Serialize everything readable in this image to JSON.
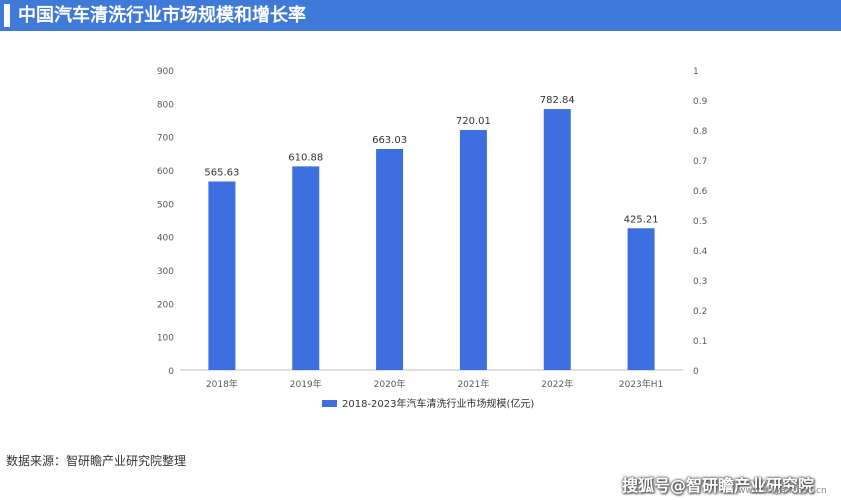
{
  "title": "中国汽车清洗行业市场规模和增长率",
  "source": "数据来源：智研瞻产业研究院整理",
  "watermark": "搜狐号@智研瞻产业研究院",
  "watermark_url": "www.zhiyanzhan.cn",
  "colors": {
    "title_bar": "#3f7ad8",
    "bar": "#3e6fe0",
    "axis_text": "#595959",
    "grid": "#d9d9d9"
  },
  "chart_data": {
    "type": "bar",
    "categories": [
      "2018年",
      "2019年",
      "2020年",
      "2021年",
      "2022年",
      "2023年H1"
    ],
    "series": [
      {
        "name": "2018-2023年汽车清洗行业市场规模(亿元)",
        "values": [
          565.63,
          610.88,
          663.03,
          720.01,
          782.84,
          425.21
        ]
      }
    ],
    "value_labels": [
      "565.63",
      "610.88",
      "663.03",
      "720.01",
      "782.84",
      "425.21"
    ],
    "ylim": [
      0,
      900
    ],
    "y_ticks": [
      "0",
      "100",
      "200",
      "300",
      "400",
      "500",
      "600",
      "700",
      "800",
      "900"
    ],
    "y2lim": [
      0,
      1
    ],
    "y2_ticks": [
      "0",
      "0.1",
      "0.2",
      "0.3",
      "0.4",
      "0.5",
      "0.6",
      "0.7",
      "0.8",
      "0.9",
      "1"
    ],
    "legend_position": "bottom",
    "grid": false
  }
}
